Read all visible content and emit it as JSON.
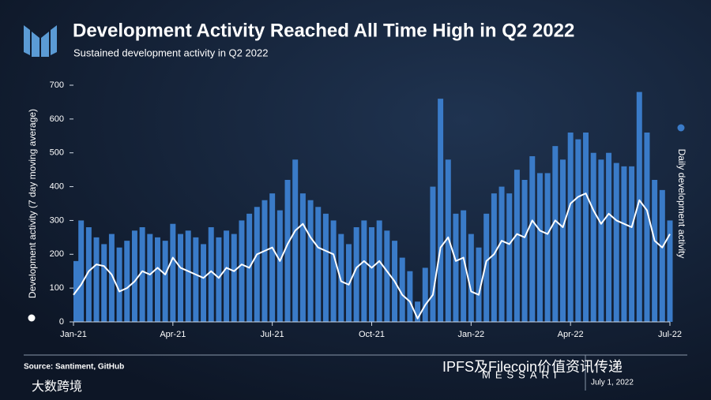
{
  "chart_data": {
    "type": "bar-line",
    "title": "Development Activity Reached All Time High in Q2 2022",
    "subtitle": "Sustained development activity in Q2 2022",
    "y_label": "Development activity (7 day moving average)",
    "y2_label": "Daily development activity",
    "source": "Source: Santiment, GitHub",
    "date_note": "July 1, 2022",
    "brand": "MESSARI",
    "watermarks": [
      "IPFS及Filecoin价值资讯传递",
      "大数跨境"
    ],
    "categories": [
      "Jan-21",
      null,
      null,
      null,
      null,
      null,
      null,
      null,
      null,
      null,
      null,
      null,
      null,
      "Apr-21",
      null,
      null,
      null,
      null,
      null,
      null,
      null,
      null,
      null,
      null,
      null,
      null,
      "Jul-21",
      null,
      null,
      null,
      null,
      null,
      null,
      null,
      null,
      null,
      null,
      null,
      null,
      "Oct-21",
      null,
      null,
      null,
      null,
      null,
      null,
      null,
      null,
      null,
      null,
      null,
      null,
      "Jan-22",
      null,
      null,
      null,
      null,
      null,
      null,
      null,
      null,
      null,
      null,
      null,
      null,
      "Apr-22",
      null,
      null,
      null,
      null,
      null,
      null,
      null,
      null,
      null,
      null,
      null,
      null,
      "Jul-22"
    ],
    "series": [
      {
        "name": "Daily development activity",
        "color": "#3a7bc8",
        "values": [
          180,
          300,
          280,
          250,
          230,
          260,
          220,
          240,
          270,
          280,
          260,
          250,
          240,
          290,
          260,
          270,
          250,
          230,
          280,
          250,
          270,
          260,
          300,
          320,
          340,
          360,
          380,
          330,
          420,
          480,
          380,
          360,
          340,
          320,
          300,
          260,
          230,
          280,
          300,
          280,
          300,
          270,
          240,
          190,
          150,
          60,
          160,
          400,
          660,
          480,
          320,
          330,
          260,
          220,
          320,
          380,
          400,
          380,
          450,
          420,
          490,
          440,
          440,
          520,
          480,
          560,
          540,
          560,
          500,
          480,
          500,
          470,
          460,
          460,
          680,
          560,
          420,
          390,
          300
        ]
      },
      {
        "name": "Development activity (7 day moving average)",
        "color": "#ffffff",
        "values": [
          80,
          110,
          150,
          170,
          165,
          140,
          90,
          100,
          120,
          150,
          140,
          160,
          140,
          190,
          160,
          150,
          140,
          130,
          150,
          130,
          160,
          150,
          170,
          160,
          200,
          210,
          220,
          180,
          230,
          270,
          290,
          250,
          220,
          210,
          200,
          120,
          110,
          160,
          180,
          160,
          180,
          150,
          120,
          80,
          60,
          10,
          50,
          80,
          220,
          250,
          180,
          190,
          90,
          80,
          180,
          200,
          240,
          230,
          260,
          250,
          300,
          270,
          260,
          300,
          280,
          350,
          370,
          380,
          330,
          290,
          320,
          300,
          290,
          280,
          360,
          330,
          240,
          220,
          260
        ]
      }
    ],
    "ylim": [
      0,
      700
    ],
    "yticks": [
      0,
      100,
      200,
      300,
      400,
      500,
      600,
      700
    ]
  }
}
